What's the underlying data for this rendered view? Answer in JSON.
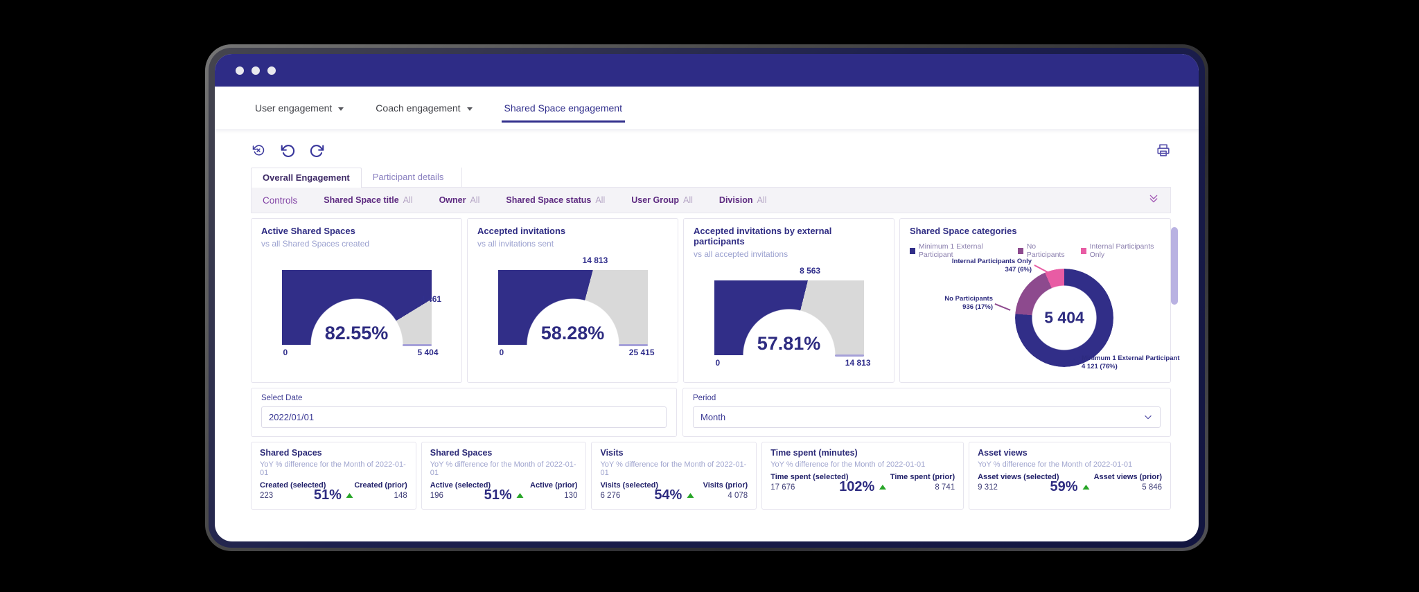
{
  "nav": {
    "items": [
      {
        "label": "User engagement"
      },
      {
        "label": "Coach engagement"
      },
      {
        "label": "Shared Space engagement"
      }
    ]
  },
  "tabs": {
    "overall": "Overall Engagement",
    "participant": "Participant details"
  },
  "controls": {
    "title": "Controls",
    "filters": [
      {
        "label": "Shared Space title",
        "value": "All"
      },
      {
        "label": "Owner",
        "value": "All"
      },
      {
        "label": "Shared Space status",
        "value": "All"
      },
      {
        "label": "User Group",
        "value": "All"
      },
      {
        "label": "Division",
        "value": "All"
      }
    ]
  },
  "date_row": {
    "select_date": {
      "label": "Select Date",
      "value": "2022/01/01"
    },
    "period": {
      "label": "Period",
      "value": "Month"
    }
  },
  "kpis": [
    {
      "title": "Shared Spaces",
      "subtitle": "YoY % difference for the Month of 2022-01-01",
      "left_label": "Created (selected)",
      "left_value": "223",
      "right_label": "Created (prior)",
      "right_value": "148",
      "pct": "51%",
      "trend": "up"
    },
    {
      "title": "Shared Spaces",
      "subtitle": "YoY % difference for the Month of 2022-01-01",
      "left_label": "Active (selected)",
      "left_value": "196",
      "right_label": "Active (prior)",
      "right_value": "130",
      "pct": "51%",
      "trend": "up"
    },
    {
      "title": "Visits",
      "subtitle": "YoY % difference for the Month of 2022-01-01",
      "left_label": "Visits (selected)",
      "left_value": "6 276",
      "right_label": "Visits (prior)",
      "right_value": "4 078",
      "pct": "54%",
      "trend": "up"
    },
    {
      "title": "Time spent (minutes)",
      "subtitle": "YoY % difference for the Month of 2022-01-01",
      "left_label": "Time spent (selected)",
      "left_value": "17 676",
      "right_label": "Time spent (prior)",
      "right_value": "8 741",
      "pct": "102%",
      "trend": "up"
    },
    {
      "title": "Asset views",
      "subtitle": "YoY % difference for the Month of 2022-01-01",
      "left_label": "Asset views (selected)",
      "left_value": "9 312",
      "right_label": "Asset views (prior)",
      "right_value": "5 846",
      "pct": "59%",
      "trend": "up"
    }
  ],
  "chart_data": [
    {
      "type": "gauge",
      "title": "Active Shared Spaces",
      "subtitle": "vs all Shared Spaces created",
      "percent": 82.55,
      "percent_label": "82.55%",
      "value": 4461,
      "value_label": "4 461",
      "min": 0,
      "min_label": "0",
      "max": 5404,
      "max_label": "5 404",
      "fill_color": "#312e88",
      "track_color": "#d9d9d9"
    },
    {
      "type": "gauge",
      "title": "Accepted invitations",
      "subtitle": "vs all invitations sent",
      "percent": 58.28,
      "percent_label": "58.28%",
      "value": 14813,
      "value_label": "14 813",
      "min": 0,
      "min_label": "0",
      "max": 25415,
      "max_label": "25 415",
      "fill_color": "#312e88",
      "track_color": "#d9d9d9"
    },
    {
      "type": "gauge",
      "title": "Accepted invitations by external participants",
      "subtitle": "vs all accepted invitations",
      "percent": 57.81,
      "percent_label": "57.81%",
      "value": 8563,
      "value_label": "8 563",
      "min": 0,
      "min_label": "0",
      "max": 14813,
      "max_label": "14 813",
      "fill_color": "#312e88",
      "track_color": "#d9d9d9"
    },
    {
      "type": "pie",
      "title": "Shared Space categories",
      "total": 5404,
      "total_label": "5 404",
      "legend_position": "top",
      "slices": [
        {
          "label": "Minimum 1 External Participant",
          "value": 4121,
          "pct": 76,
          "callout": "4 121 (76%)",
          "color": "#312e88"
        },
        {
          "label": "No Participants",
          "value": 936,
          "pct": 17,
          "callout": "936 (17%)",
          "color": "#8d4a8e"
        },
        {
          "label": "Internal Participants Only",
          "value": 347,
          "pct": 6,
          "callout": "347 (6%)",
          "color": "#e85ca4"
        }
      ]
    }
  ],
  "colors": {
    "titlebar": "#2e2c86",
    "accent_indigo": "#312e88",
    "track_gray": "#d9d9d9",
    "plum": "#8d4a8e",
    "pink": "#e85ca4",
    "green_up": "#27a527"
  }
}
